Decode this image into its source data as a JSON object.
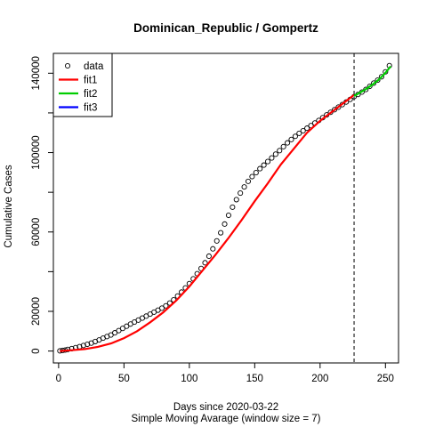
{
  "chart_data": {
    "type": "scatter",
    "title": "Dominican_Republic / Gompertz",
    "xlabel": "Days since 2020-03-22",
    "xlabel2": "Simple Moving Avarage (window size = 7)",
    "ylabel": "Cumulative Cases",
    "xlim": [
      -4,
      260
    ],
    "ylim": [
      -6000,
      150000
    ],
    "xticks": [
      0,
      50,
      100,
      150,
      200,
      250
    ],
    "yticks": [
      0,
      20000,
      40000,
      60000,
      80000,
      100000,
      120000,
      140000
    ],
    "ytick_labels": [
      "0",
      "20000",
      "60000",
      "100000",
      "140000"
    ],
    "ytick_label_values": [
      0,
      20000,
      60000,
      100000,
      140000
    ],
    "vline_x": 226,
    "legend": {
      "position": "top-left",
      "entries": [
        {
          "label": "data",
          "symbol": "circle",
          "color": "#000000"
        },
        {
          "label": "fit1",
          "symbol": "line",
          "color": "#ff0000"
        },
        {
          "label": "fit2",
          "symbol": "line",
          "color": "#00cd00"
        },
        {
          "label": "fit3",
          "symbol": "line",
          "color": "#0000ff"
        }
      ]
    },
    "data_points": {
      "x": [
        1,
        3,
        5,
        7,
        10,
        13,
        16,
        19,
        22,
        25,
        28,
        31,
        34,
        37,
        40,
        43,
        46,
        49,
        52,
        55,
        58,
        61,
        64,
        67,
        70,
        73,
        76,
        79,
        82,
        85,
        88,
        91,
        94,
        97,
        100,
        103,
        106,
        109,
        112,
        115,
        118,
        121,
        124,
        127,
        130,
        133,
        136,
        139,
        142,
        145,
        148,
        151,
        154,
        157,
        160,
        163,
        166,
        169,
        172,
        175,
        178,
        181,
        184,
        187,
        190,
        193,
        196,
        199,
        202,
        205,
        208,
        211,
        214,
        217,
        220,
        223,
        226,
        229,
        232,
        235,
        238,
        241,
        244,
        247,
        250,
        253
      ],
      "y": [
        100,
        300,
        500,
        800,
        1200,
        1700,
        2200,
        2800,
        3400,
        4000,
        4800,
        5600,
        6500,
        7300,
        8100,
        9200,
        10300,
        11400,
        12500,
        13600,
        14600,
        15600,
        16600,
        17600,
        18600,
        19600,
        20600,
        21600,
        22800,
        24200,
        25800,
        27700,
        29700,
        31800,
        34000,
        36400,
        39000,
        41600,
        44500,
        47800,
        51500,
        55500,
        59600,
        64000,
        68400,
        72500,
        76300,
        79600,
        82700,
        85500,
        87900,
        89900,
        91900,
        93700,
        95500,
        97300,
        99200,
        101000,
        103000,
        104900,
        106600,
        108200,
        109700,
        111000,
        112300,
        113600,
        114900,
        116200,
        117600,
        119000,
        120300,
        121600,
        122900,
        124200,
        125500,
        126800,
        128200,
        129300,
        130500,
        131800,
        133400,
        135000,
        136500,
        138200,
        140700,
        143800
      ]
    },
    "series": [
      {
        "name": "fit1",
        "color": "#ff0000",
        "x": [
          1,
          10,
          20,
          30,
          40,
          50,
          60,
          70,
          80,
          90,
          100,
          110,
          120,
          130,
          140,
          150,
          160,
          170,
          180,
          190,
          200,
          210,
          220,
          226
        ],
        "y": [
          0,
          400,
          1000,
          2100,
          3800,
          6500,
          10000,
          14500,
          19500,
          25500,
          32500,
          40500,
          48500,
          57000,
          66000,
          75500,
          84500,
          94000,
          102000,
          110000,
          116000,
          121000,
          126000,
          129000
        ]
      },
      {
        "name": "fit2",
        "color": "#00cd00",
        "x": [
          226,
          230,
          235,
          240,
          245,
          250,
          254
        ],
        "y": [
          128500,
          130000,
          132000,
          134200,
          136800,
          140200,
          143500
        ]
      }
    ]
  }
}
